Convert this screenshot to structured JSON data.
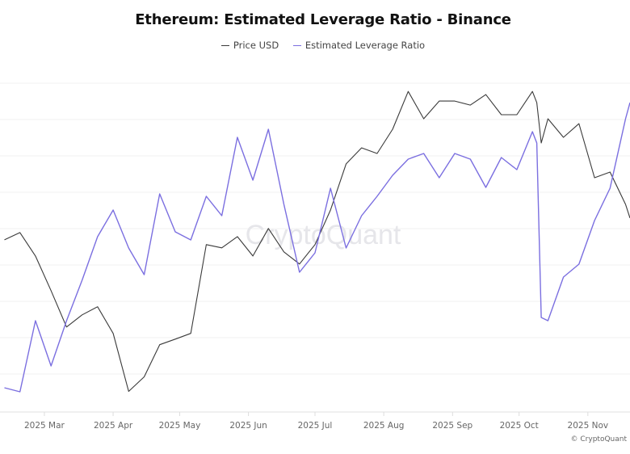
{
  "chart_data": {
    "type": "line",
    "title": "Ethereum: Estimated Leverage Ratio - Binance",
    "x": [
      "2025-02-11",
      "2025-02-18",
      "2025-02-25",
      "2025-03-04",
      "2025-03-11",
      "2025-03-18",
      "2025-03-25",
      "2025-04-01",
      "2025-04-08",
      "2025-04-15",
      "2025-04-22",
      "2025-04-29",
      "2025-05-06",
      "2025-05-13",
      "2025-05-20",
      "2025-05-27",
      "2025-06-03",
      "2025-06-10",
      "2025-06-17",
      "2025-06-24",
      "2025-07-01",
      "2025-07-08",
      "2025-07-15",
      "2025-07-22",
      "2025-07-29",
      "2025-08-05",
      "2025-08-12",
      "2025-08-19",
      "2025-08-26",
      "2025-09-02",
      "2025-09-09",
      "2025-09-16",
      "2025-09-23",
      "2025-09-30",
      "2025-10-07",
      "2025-10-09",
      "2025-10-11",
      "2025-10-14",
      "2025-10-21",
      "2025-10-28",
      "2025-11-04",
      "2025-11-11",
      "2025-11-18",
      "2025-11-20"
    ],
    "series": [
      {
        "name": "Price USD",
        "color": "#3a3a3a",
        "axis": "left-hidden",
        "scale": "log",
        "values": [
          2621,
          2699,
          2456,
          2136,
          1845,
          1937,
          2002,
          1798,
          1423,
          1509,
          1718,
          1757,
          1798,
          2571,
          2538,
          2655,
          2456,
          2744,
          2497,
          2378,
          2571,
          2956,
          3559,
          3797,
          3712,
          4092,
          4766,
          4269,
          4585,
          4585,
          4511,
          4706,
          4339,
          4339,
          4766,
          4556,
          3872,
          4269,
          3961,
          4186,
          3367,
          3444,
          3024,
          2862
        ]
      },
      {
        "name": "Estimated Leverage Ratio",
        "color": "#7b6fe0",
        "axis": "right-hidden",
        "scale": "linear",
        "values": [
          0.46,
          0.455,
          0.543,
          0.487,
          0.543,
          0.593,
          0.647,
          0.68,
          0.633,
          0.6,
          0.7,
          0.653,
          0.643,
          0.697,
          0.673,
          0.77,
          0.717,
          0.78,
          0.687,
          0.603,
          0.627,
          0.707,
          0.633,
          0.673,
          0.697,
          0.723,
          0.743,
          0.75,
          0.72,
          0.75,
          0.743,
          0.708,
          0.745,
          0.73,
          0.777,
          0.763,
          0.547,
          0.543,
          0.597,
          0.613,
          0.667,
          0.707,
          0.793,
          0.813
        ]
      }
    ],
    "xlim": [
      "2025-02-09",
      "2025-11-20"
    ],
    "price_ylim": [
      1340,
      5140
    ],
    "ratio_ylim": [
      0.437,
      0.85
    ],
    "x_ticks": [
      {
        "date": "2025-03-01",
        "label": "2025 Mar"
      },
      {
        "date": "2025-04-01",
        "label": "2025 Apr"
      },
      {
        "date": "2025-05-01",
        "label": "2025 May"
      },
      {
        "date": "2025-06-01",
        "label": "2025 Jun"
      },
      {
        "date": "2025-07-01",
        "label": "2025 Jul"
      },
      {
        "date": "2025-08-01",
        "label": "2025 Aug"
      },
      {
        "date": "2025-09-01",
        "label": "2025 Sep"
      },
      {
        "date": "2025-10-01",
        "label": "2025 Oct"
      },
      {
        "date": "2025-11-01",
        "label": "2025 Nov"
      }
    ],
    "grid": true,
    "legend_placement": "top-center",
    "watermark": "CryptoQuant",
    "footer": "© CryptoQuant"
  }
}
